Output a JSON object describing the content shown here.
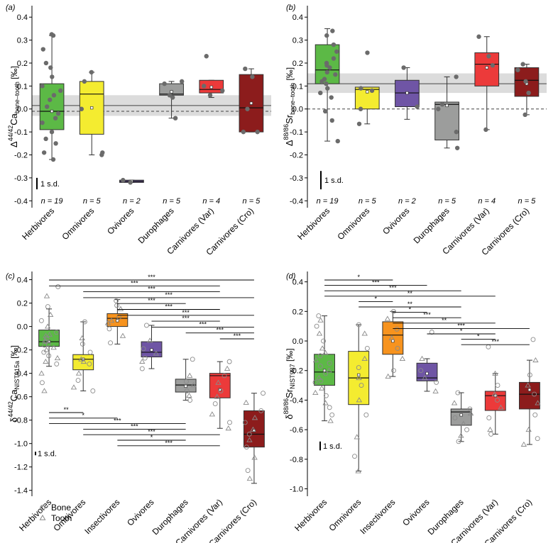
{
  "figure": {
    "legend": {
      "bone": "Bone",
      "tooth": "Tooth"
    },
    "sd_label": "1 s.d."
  },
  "chart_data": [
    {
      "panel": "(a)",
      "type": "box",
      "ylabel_pre": "Δ",
      "ylabel_sup": "44/42",
      "ylabel_main": "Ca",
      "ylabel_sub": "bone–tooth",
      "ylabel_unit": "[‰]",
      "ylim": [
        -0.43,
        0.45
      ],
      "yticks": [
        -0.4,
        -0.3,
        -0.2,
        -0.1,
        0.0,
        0.1,
        0.2,
        0.3,
        0.4
      ],
      "categories": [
        "Herbivores",
        "Omnivores",
        "Ovivores",
        "Durophages",
        "Carnivores (Var)",
        "Carnivores (Cro)"
      ],
      "colors": [
        "#5cb946",
        "#f4ec30",
        "#6f55a5",
        "#9c9d9c",
        "#ec3a3a",
        "#8c1c1c"
      ],
      "n_labels": [
        "n = 19",
        "n = 5",
        "n = 2",
        "n = 5",
        "n = 4",
        "n = 5"
      ],
      "band": [
        -0.03,
        0.06
      ],
      "hline_solid": 0.015,
      "hline_dashed": -0.01,
      "sd_bar": [
        -0.35,
        -0.3
      ],
      "boxes": [
        {
          "q1": -0.09,
          "med": -0.01,
          "q3": 0.11,
          "lo": -0.22,
          "hi": 0.32,
          "mean": -0.01
        },
        {
          "q1": -0.11,
          "med": 0.065,
          "q3": 0.12,
          "lo": -0.2,
          "hi": 0.16,
          "mean": 0.005
        },
        {
          "q1": -0.32,
          "med": -0.315,
          "q3": -0.31,
          "lo": -0.32,
          "hi": -0.31,
          "mean": -0.315
        },
        {
          "q1": 0.06,
          "med": 0.065,
          "q3": 0.11,
          "lo": -0.04,
          "hi": 0.12,
          "mean": 0.075
        },
        {
          "q1": 0.07,
          "med": 0.085,
          "q3": 0.125,
          "lo": 0.05,
          "hi": 0.125,
          "mean": 0.095
        },
        {
          "q1": -0.1,
          "med": 0.005,
          "q3": 0.15,
          "lo": -0.1,
          "hi": 0.175,
          "mean": 0.025
        }
      ],
      "points": [
        [
          0.325,
          0.32,
          0.26,
          0.2,
          0.18,
          0.14,
          0.1,
          0.08,
          0.06,
          0.04,
          0.01,
          -0.02,
          -0.04,
          -0.06,
          -0.1,
          -0.13,
          -0.15,
          -0.19,
          -0.22
        ],
        [
          0.16,
          0.12,
          0.0,
          -0.2,
          -0.19
        ],
        [
          -0.31,
          -0.32
        ],
        [
          0.12,
          0.11,
          0.06,
          0.05,
          -0.04
        ],
        [
          0.23,
          0.1,
          0.08,
          0.06
        ],
        [
          0.175,
          0.14,
          0.0,
          -0.1,
          -0.1
        ]
      ]
    },
    {
      "panel": "(b)",
      "type": "box",
      "ylabel_pre": "Δ",
      "ylabel_sup": "88/86",
      "ylabel_main": "Sr",
      "ylabel_sub": "bone–tooth",
      "ylabel_unit": "[‰]",
      "ylim": [
        -0.43,
        0.45
      ],
      "yticks": [
        -0.4,
        -0.3,
        -0.2,
        -0.1,
        0.0,
        0.1,
        0.2,
        0.3,
        0.4
      ],
      "categories": [
        "Herbivores",
        "Omnivores",
        "Ovivores",
        "Durophages",
        "Carnivores (Var)",
        "Carnivores (Cro)"
      ],
      "colors": [
        "#5cb946",
        "#f4ec30",
        "#6f55a5",
        "#9c9d9c",
        "#ec3a3a",
        "#8c1c1c"
      ],
      "n_labels": [
        "n = 19",
        "n = 5",
        "n = 2",
        "n = 5",
        "n = 4",
        "n = 5"
      ],
      "band": [
        0.07,
        0.155
      ],
      "hline_solid": 0.11,
      "hline_dashed": 0.0,
      "sd_bar": [
        -0.35,
        -0.27
      ],
      "boxes": [
        {
          "q1": 0.11,
          "med": 0.17,
          "q3": 0.28,
          "lo": -0.14,
          "hi": 0.35,
          "mean": 0.16
        },
        {
          "q1": 0.0,
          "med": 0.085,
          "q3": 0.095,
          "lo": -0.065,
          "hi": 0.095,
          "mean": 0.075
        },
        {
          "q1": 0.01,
          "med": 0.07,
          "q3": 0.125,
          "lo": -0.045,
          "hi": 0.18,
          "mean": 0.07
        },
        {
          "q1": -0.135,
          "med": 0.02,
          "q3": 0.03,
          "lo": -0.17,
          "hi": 0.14,
          "mean": 0.015
        },
        {
          "q1": 0.1,
          "med": 0.195,
          "q3": 0.245,
          "lo": -0.09,
          "hi": 0.315,
          "mean": 0.18
        },
        {
          "q1": 0.055,
          "med": 0.125,
          "q3": 0.18,
          "lo": -0.025,
          "hi": 0.195,
          "mean": 0.11
        }
      ],
      "points": [
        [
          0.34,
          0.32,
          0.28,
          0.25,
          0.22,
          0.2,
          0.19,
          0.18,
          0.16,
          0.15,
          0.13,
          0.12,
          0.11,
          0.09,
          0.07,
          0.05,
          -0.01,
          -0.05,
          -0.14
        ],
        [
          0.245,
          0.09,
          0.08,
          0.0,
          -0.065
        ],
        [
          0.18,
          0.01
        ],
        [
          0.14,
          0.02,
          0.0,
          -0.1,
          -0.17
        ],
        [
          0.315,
          0.23,
          0.19,
          -0.09
        ],
        [
          0.195,
          0.17,
          0.12,
          0.07,
          -0.025
        ]
      ]
    },
    {
      "panel": "(c)",
      "type": "box",
      "ylabel_pre": "δ",
      "ylabel_sup": "44/42",
      "ylabel_main": "Ca",
      "ylabel_sub": "NIST915a",
      "ylabel_unit": "[‰]",
      "ylim": [
        -1.45,
        0.47
      ],
      "yticks": [
        -1.4,
        -1.2,
        -1.0,
        -0.8,
        -0.6,
        -0.4,
        -0.2,
        0.0,
        0.2,
        0.4
      ],
      "categories": [
        "Herbivores",
        "Omnivores",
        "Insectivores",
        "Ovivores",
        "Durophages",
        "Carnivores (Var)",
        "Carnivores (Cro)"
      ],
      "colors": [
        "#5cb946",
        "#f4ec30",
        "#f7931e",
        "#6f55a5",
        "#9c9d9c",
        "#ec3a3a",
        "#8c1c1c"
      ],
      "sd_bar": [
        -1.1,
        -1.07
      ],
      "boxes": [
        {
          "q1": -0.17,
          "med": -0.13,
          "q3": -0.03,
          "lo": -0.34,
          "hi": 0.15,
          "mean": -0.13
        },
        {
          "q1": -0.37,
          "med": -0.28,
          "q3": -0.24,
          "lo": -0.55,
          "hi": 0.04,
          "mean": -0.28
        },
        {
          "q1": 0.0,
          "med": 0.07,
          "q3": 0.11,
          "lo": -0.15,
          "hi": 0.23,
          "mean": 0.05
        },
        {
          "q1": -0.26,
          "med": -0.22,
          "q3": -0.13,
          "lo": -0.36,
          "hi": 0.01,
          "mean": -0.2
        },
        {
          "q1": -0.56,
          "med": -0.5,
          "q3": -0.45,
          "lo": -0.63,
          "hi": -0.28,
          "mean": -0.51
        },
        {
          "q1": -0.61,
          "med": -0.42,
          "q3": -0.4,
          "lo": -0.87,
          "hi": -0.3,
          "mean": -0.54
        },
        {
          "q1": -1.03,
          "med": -0.92,
          "q3": -0.72,
          "lo": -1.34,
          "hi": -0.57,
          "mean": -0.89
        }
      ],
      "points": [
        [
          0.34,
          0.26,
          0.17,
          0.1,
          0.05,
          0.0,
          -0.05,
          -0.08,
          -0.1,
          -0.12,
          -0.15,
          -0.18,
          -0.22,
          -0.27,
          -0.32,
          -0.4,
          -0.48,
          -0.55,
          -0.13,
          -0.07,
          -0.16,
          -0.2,
          -0.25,
          -0.3
        ],
        [
          0.04,
          -0.1,
          -0.22,
          -0.28,
          -0.32,
          -0.4,
          -0.46,
          -0.52,
          -0.55,
          -0.3,
          -0.15
        ],
        [
          0.22,
          0.15,
          0.08,
          0.03,
          -0.02,
          -0.08,
          -0.14,
          0.05,
          0.18
        ],
        [
          0.01,
          -0.12,
          -0.19,
          -0.23,
          -0.27,
          -0.3,
          -0.36
        ],
        [
          -0.28,
          -0.42,
          -0.47,
          -0.5,
          -0.55,
          -0.59,
          -0.63
        ],
        [
          -0.3,
          -0.36,
          -0.42,
          -0.48,
          -0.55,
          -0.6,
          -0.66,
          -0.75,
          -0.82,
          -0.87
        ],
        [
          -0.57,
          -0.65,
          -0.72,
          -0.78,
          -0.82,
          -0.88,
          -0.92,
          -0.97,
          -1.03,
          -1.12,
          -1.23,
          -1.3
        ]
      ],
      "sig_top": [
        [
          0,
          6,
          "***"
        ],
        [
          0,
          5,
          "***"
        ],
        [
          1,
          5,
          "***"
        ],
        [
          1,
          6,
          "***"
        ],
        [
          2,
          4,
          "***"
        ],
        [
          2,
          5,
          "***"
        ],
        [
          2,
          6,
          "***"
        ],
        [
          3,
          5,
          "***"
        ],
        [
          3,
          6,
          "***"
        ],
        [
          4,
          6,
          "***"
        ],
        [
          5,
          6,
          "***"
        ]
      ],
      "sig_bottom": [
        [
          0,
          1,
          "**"
        ],
        [
          0,
          2,
          "*"
        ],
        [
          0,
          4,
          "***"
        ],
        [
          1,
          4,
          "***"
        ],
        [
          1,
          5,
          "***"
        ],
        [
          2,
          4,
          "*"
        ],
        [
          2,
          5,
          "***"
        ]
      ]
    },
    {
      "panel": "(d)",
      "type": "box",
      "ylabel_pre": "δ",
      "ylabel_sup": "88/86",
      "ylabel_main": "Sr",
      "ylabel_sub": "NIST987",
      "ylabel_unit": "[‰]",
      "ylim": [
        -1.05,
        0.47
      ],
      "yticks": [
        -1.0,
        -0.8,
        -0.6,
        -0.4,
        -0.2,
        0.0,
        0.2,
        0.4
      ],
      "categories": [
        "Herbivores",
        "Omnivores",
        "Insectivores",
        "Ovivores",
        "Durophages",
        "Carnivores (Var)",
        "Carnivores (Cro)"
      ],
      "colors": [
        "#5cb946",
        "#f4ec30",
        "#f7931e",
        "#6f55a5",
        "#9c9d9c",
        "#ec3a3a",
        "#8c1c1c"
      ],
      "sd_bar": [
        -0.74,
        -0.68
      ],
      "boxes": [
        {
          "q1": -0.3,
          "med": -0.21,
          "q3": -0.09,
          "lo": -0.54,
          "hi": 0.17,
          "mean": -0.2
        },
        {
          "q1": -0.43,
          "med": -0.25,
          "q3": -0.07,
          "lo": -0.88,
          "hi": 0.11,
          "mean": -0.23
        },
        {
          "q1": -0.09,
          "med": 0.04,
          "q3": 0.13,
          "lo": -0.24,
          "hi": 0.2,
          "mean": 0.0
        },
        {
          "q1": -0.27,
          "med": -0.25,
          "q3": -0.15,
          "lo": -0.34,
          "hi": -0.12,
          "mean": -0.22
        },
        {
          "q1": -0.57,
          "med": -0.48,
          "q3": -0.46,
          "lo": -0.68,
          "hi": -0.35,
          "mean": -0.5
        },
        {
          "q1": -0.47,
          "med": -0.37,
          "q3": -0.34,
          "lo": -0.63,
          "hi": -0.22,
          "mean": -0.37
        },
        {
          "q1": -0.46,
          "med": -0.36,
          "q3": -0.28,
          "lo": -0.7,
          "hi": -0.13,
          "mean": -0.33
        }
      ],
      "points": [
        [
          0.17,
          0.14,
          0.1,
          0.05,
          0.0,
          -0.05,
          -0.1,
          -0.13,
          -0.17,
          -0.2,
          -0.22,
          -0.25,
          -0.28,
          -0.32,
          -0.37,
          -0.42,
          -0.5,
          -0.54,
          -0.15,
          -0.08,
          -0.27,
          -0.35,
          -0.45
        ],
        [
          0.11,
          0.05,
          -0.05,
          -0.12,
          -0.18,
          -0.25,
          -0.3,
          -0.4,
          -0.5,
          -0.65,
          -0.78,
          -0.88
        ],
        [
          0.2,
          0.15,
          0.08,
          0.02,
          -0.05,
          -0.12,
          -0.2,
          -0.24
        ],
        [
          0.06,
          -0.12,
          -0.2,
          -0.25,
          -0.28,
          -0.34
        ],
        [
          -0.35,
          -0.42,
          -0.46,
          -0.49,
          -0.52,
          -0.56,
          -0.6,
          -0.64,
          -0.68
        ],
        [
          -0.04,
          -0.22,
          -0.3,
          -0.36,
          -0.4,
          -0.45,
          -0.52,
          -0.6,
          -0.63
        ],
        [
          0.01,
          -0.13,
          -0.23,
          -0.3,
          -0.36,
          -0.42,
          -0.5,
          -0.6,
          -0.66,
          -0.7
        ]
      ],
      "sig_top": [
        [
          0,
          2,
          "*"
        ],
        [
          0,
          3,
          "***"
        ],
        [
          0,
          4,
          "***"
        ],
        [
          0,
          5,
          "**"
        ],
        [
          1,
          2,
          "*"
        ],
        [
          1,
          4,
          "**"
        ],
        [
          2,
          3,
          "*"
        ],
        [
          2,
          4,
          "***"
        ],
        [
          2,
          5,
          "**"
        ],
        [
          2,
          6,
          "***"
        ],
        [
          3,
          5,
          "*"
        ],
        [
          4,
          5,
          "*"
        ],
        [
          4,
          6,
          "***"
        ]
      ],
      "sig_bottom": []
    }
  ]
}
